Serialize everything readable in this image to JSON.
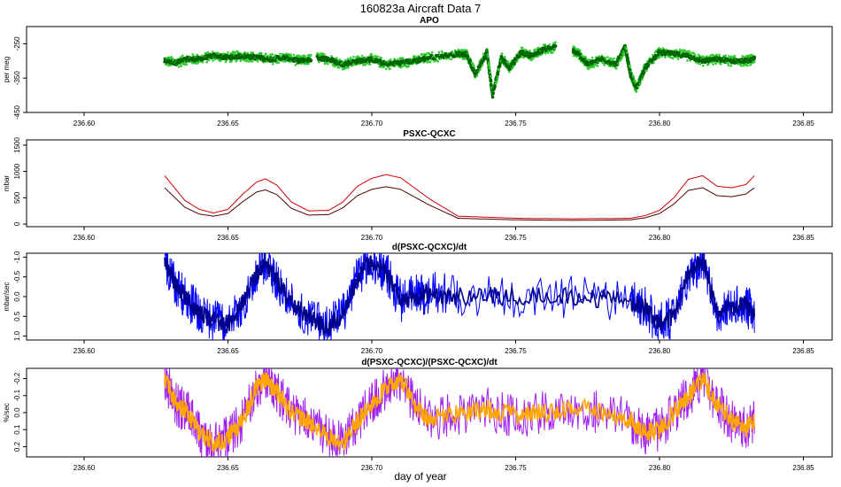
{
  "figure": {
    "title": "160823a   Aircraft Data 7",
    "xlabel": "day of year"
  },
  "chart_data": [
    {
      "type": "scatter",
      "title": "APO",
      "xlabel": "",
      "ylabel": "per meg",
      "xlim": [
        236.58,
        236.86
      ],
      "ylim": [
        -450,
        -200
      ],
      "y_reversed": false,
      "xticks": [
        "236.60",
        "236.65",
        "236.70",
        "236.75",
        "236.80",
        "236.85"
      ],
      "yticks": [
        "-250",
        "-350",
        "-450"
      ],
      "colors": {
        "primary": "#006400",
        "secondary": "#32cd32"
      },
      "series": [
        {
          "x": [
            236.628,
            236.632,
            236.636,
            236.64,
            236.645,
            236.65,
            236.655,
            236.66,
            236.665,
            236.67,
            236.675,
            236.679,
            236.68,
            236.681,
            236.685,
            236.69,
            236.695,
            236.7,
            236.705,
            236.71,
            236.715,
            236.72,
            236.73,
            236.733,
            236.736,
            236.74,
            236.742,
            236.745,
            236.748,
            236.752,
            236.756,
            236.76,
            236.764,
            236.768,
            236.77,
            236.772,
            236.775,
            236.78,
            236.785,
            236.788,
            236.79,
            236.792,
            236.795,
            236.8,
            236.805,
            236.81,
            236.815,
            236.82,
            236.825,
            236.83,
            236.833
          ],
          "y": [
            -300,
            -305,
            -295,
            -295,
            -285,
            -290,
            -285,
            -290,
            -295,
            -290,
            -300,
            -295,
            null,
            -290,
            -295,
            -310,
            -300,
            -295,
            -310,
            -305,
            -300,
            -290,
            -280,
            -280,
            -340,
            -275,
            -400,
            -290,
            -320,
            -275,
            -285,
            -265,
            -260,
            null,
            -270,
            -280,
            -310,
            -295,
            -310,
            -260,
            -340,
            -380,
            -320,
            -275,
            -280,
            -285,
            -300,
            -295,
            -300,
            -300,
            -295
          ]
        }
      ]
    },
    {
      "type": "line",
      "title": "PSXC-QCXC",
      "xlabel": "",
      "ylabel": "mbar",
      "xlim": [
        236.58,
        236.86
      ],
      "ylim": [
        -50,
        1600
      ],
      "y_reversed": false,
      "xticks": [
        "236.60",
        "236.65",
        "236.70",
        "236.75",
        "236.80",
        "236.85"
      ],
      "yticks": [
        "0",
        "500",
        "1000",
        "1500"
      ],
      "colors": {
        "primary": "#d00000",
        "secondary": "#500000"
      },
      "series": [
        {
          "x": [
            236.628,
            236.635,
            236.64,
            236.645,
            236.65,
            236.655,
            236.66,
            236.663,
            236.667,
            236.672,
            236.678,
            236.685,
            236.69,
            236.695,
            236.7,
            236.705,
            236.71,
            236.72,
            236.73,
            236.75,
            236.77,
            236.79,
            236.795,
            236.8,
            236.805,
            236.81,
            236.815,
            236.82,
            236.825,
            236.83,
            236.833
          ],
          "y": [
            920,
            450,
            280,
            210,
            280,
            560,
            800,
            860,
            740,
            420,
            250,
            260,
            420,
            720,
            870,
            940,
            880,
            480,
            150,
            110,
            100,
            110,
            160,
            260,
            500,
            850,
            920,
            720,
            690,
            750,
            920
          ]
        },
        {
          "x": [
            236.628,
            236.635,
            236.64,
            236.645,
            236.65,
            236.655,
            236.66,
            236.663,
            236.667,
            236.672,
            236.678,
            236.685,
            236.69,
            236.695,
            236.7,
            236.705,
            236.71,
            236.72,
            236.73,
            236.75,
            236.77,
            236.79,
            236.795,
            236.8,
            236.805,
            236.81,
            236.815,
            236.82,
            236.825,
            236.83,
            236.833
          ],
          "y": [
            690,
            320,
            190,
            150,
            200,
            420,
            610,
            650,
            560,
            300,
            170,
            180,
            310,
            540,
            660,
            710,
            660,
            360,
            110,
            80,
            70,
            80,
            120,
            200,
            380,
            640,
            690,
            540,
            520,
            570,
            690
          ]
        }
      ]
    },
    {
      "type": "line",
      "title": "d(PSXC-QCXC)/dt",
      "xlabel": "",
      "ylabel": "mbar/sec",
      "xlim": [
        236.58,
        236.86
      ],
      "ylim": [
        1.1,
        -1.1
      ],
      "y_reversed": true,
      "xticks": [
        "236.60",
        "236.65",
        "236.70",
        "236.75",
        "236.80",
        "236.85"
      ],
      "yticks": [
        "-1.0",
        "-0.5",
        "0.0",
        "0.5",
        "1.0"
      ],
      "colors": {
        "primary": "#00008b",
        "secondary": "#0000ff"
      },
      "series": [
        {
          "x": [
            236.628,
            236.632,
            236.636,
            236.64,
            236.645,
            236.65,
            236.655,
            236.66,
            236.663,
            236.667,
            236.672,
            236.678,
            236.685,
            236.69,
            236.695,
            236.7,
            236.705,
            236.71,
            236.715,
            236.72,
            236.73,
            236.75,
            236.77,
            236.79,
            236.795,
            236.8,
            236.805,
            236.81,
            236.815,
            236.82,
            236.825,
            236.83,
            236.833
          ],
          "y": [
            -0.9,
            -0.3,
            0.1,
            0.4,
            0.6,
            0.7,
            0.2,
            -0.6,
            -0.9,
            -0.4,
            0.2,
            0.5,
            0.8,
            0.4,
            -0.5,
            -0.9,
            -0.6,
            0.1,
            0.0,
            -0.1,
            0.0,
            0.0,
            0.0,
            0.1,
            0.3,
            0.7,
            0.5,
            -0.6,
            -0.9,
            0.4,
            0.3,
            0.2,
            0.5
          ]
        }
      ]
    },
    {
      "type": "line",
      "title": "d(PSXC-QCXC)/(PSXC-QCXC)/dt",
      "xlabel": "",
      "ylabel": "%/sec",
      "xlim": [
        236.58,
        236.86
      ],
      "ylim": [
        0.26,
        -0.26
      ],
      "y_reversed": true,
      "xticks": [
        "236.60",
        "236.65",
        "236.70",
        "236.75",
        "236.80",
        "236.85"
      ],
      "yticks": [
        "-0.2",
        "-0.1",
        "0.0",
        "0.1",
        "0.2"
      ],
      "colors": {
        "primary": "#ffa500",
        "secondary": "#a020f0"
      },
      "series": [
        {
          "x": [
            236.628,
            236.632,
            236.636,
            236.64,
            236.645,
            236.65,
            236.655,
            236.66,
            236.663,
            236.667,
            236.672,
            236.678,
            236.685,
            236.69,
            236.695,
            236.7,
            236.705,
            236.71,
            236.715,
            236.72,
            236.73,
            236.74,
            236.75,
            236.76,
            236.77,
            236.78,
            236.79,
            236.795,
            236.8,
            236.805,
            236.81,
            236.815,
            236.82,
            236.825,
            236.83,
            236.833
          ],
          "y": [
            -0.2,
            -0.05,
            0.0,
            0.12,
            0.18,
            0.15,
            0.05,
            -0.15,
            -0.2,
            -0.12,
            0.0,
            0.05,
            0.15,
            0.18,
            0.05,
            -0.05,
            -0.15,
            -0.2,
            -0.05,
            0.05,
            0.0,
            -0.02,
            0.02,
            0.0,
            -0.03,
            0.0,
            0.05,
            0.12,
            0.1,
            0.0,
            -0.1,
            -0.2,
            -0.05,
            0.05,
            0.1,
            0.05
          ]
        }
      ]
    }
  ]
}
